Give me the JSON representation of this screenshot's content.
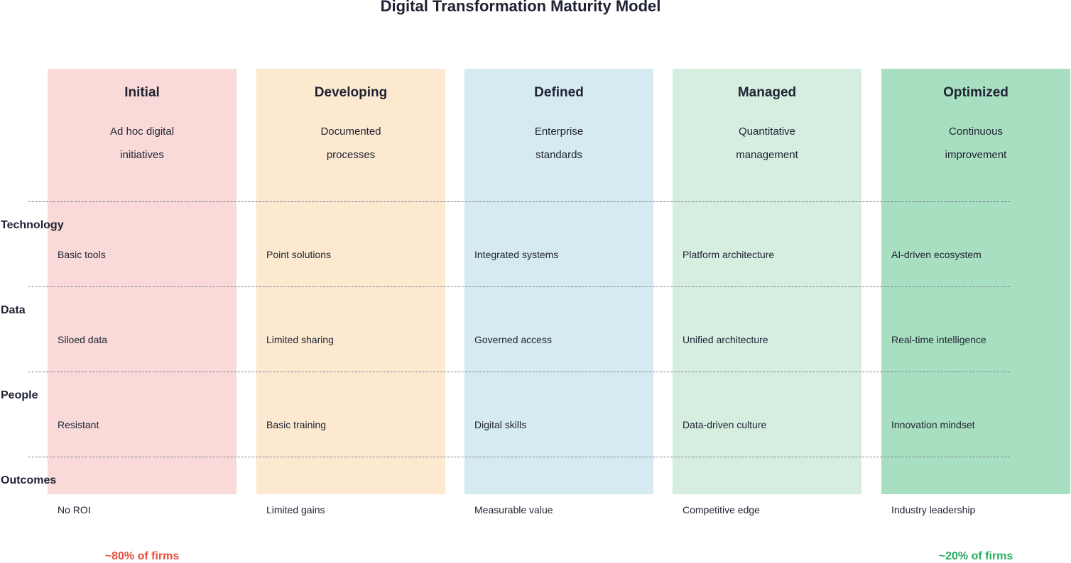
{
  "title": "Digital Transformation Maturity Model",
  "stages": [
    {
      "name": "Initial",
      "desc1": "Ad hoc digital",
      "desc2": "initiatives",
      "color": "#f9dad8",
      "cells": [
        "Basic tools",
        "Siloed data",
        "Resistant",
        "No ROI"
      ]
    },
    {
      "name": "Developing",
      "desc1": "Documented",
      "desc2": "processes",
      "color": "#fce9cf",
      "cells": [
        "Point solutions",
        "Limited sharing",
        "Basic training",
        "Limited gains"
      ]
    },
    {
      "name": "Defined",
      "desc1": "Enterprise",
      "desc2": "standards",
      "color": "#d5eaf1",
      "cells": [
        "Integrated systems",
        "Governed access",
        "Digital skills",
        "Measurable value"
      ]
    },
    {
      "name": "Managed",
      "desc1": "Quantitative",
      "desc2": "management",
      "color": "#d5eee0",
      "cells": [
        "Platform architecture",
        "Unified architecture",
        "Data-driven culture",
        "Competitive edge"
      ]
    },
    {
      "name": "Optimized",
      "desc1": "Continuous",
      "desc2": "improvement",
      "color": "#a8dfc0",
      "cells": [
        "AI-driven ecosystem",
        "Real-time intelligence",
        "Innovation mindset",
        "Industry leadership"
      ]
    }
  ],
  "dimensions": [
    "Technology",
    "Data",
    "People",
    "Outcomes"
  ],
  "footer": {
    "left": {
      "text": "~80% of firms",
      "color": "#e74c3c"
    },
    "right": {
      "text": "~20% of firms",
      "color": "#27ae60"
    }
  }
}
